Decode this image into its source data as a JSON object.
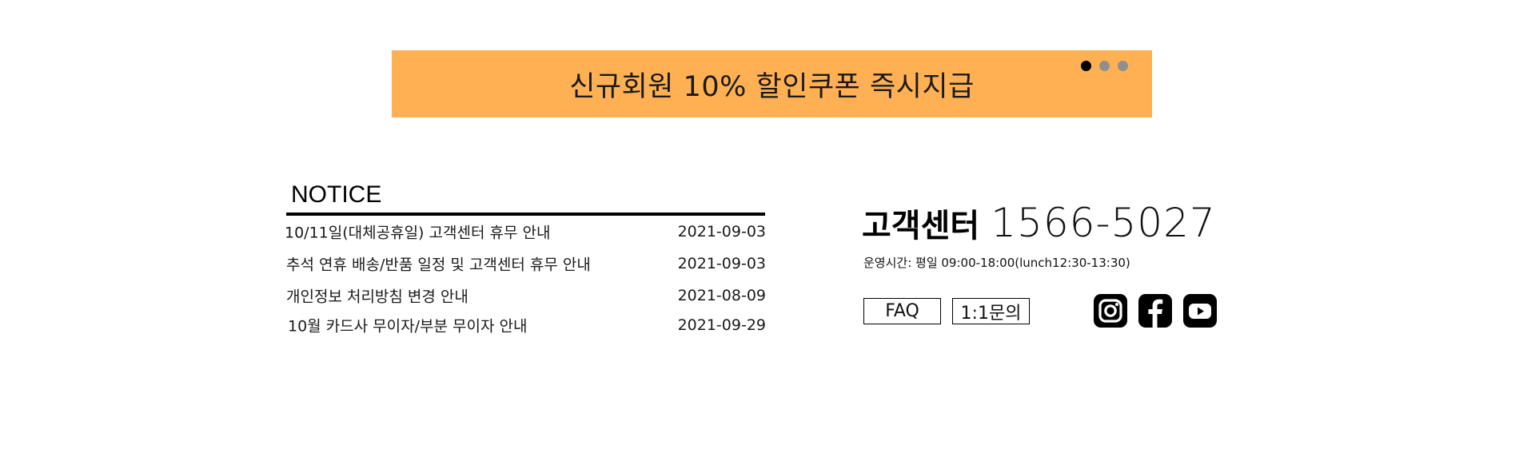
{
  "banner": {
    "text": "신규회원 10% 할인쿠폰 즉시지급",
    "bg_color": "#FFB052",
    "dots": 3,
    "active_dot": 0
  },
  "notice": {
    "title": "NOTICE",
    "items": [
      {
        "title": "10/11일(대체공휴일) 고객센터 휴무 안내",
        "date": "2021-09-03"
      },
      {
        "title": "추석 연휴 배송/반품 일정 및 고객센터 휴무 안내",
        "date": "2021-09-03"
      },
      {
        "title": "개인정보 처리방침 변경 안내",
        "date": "2021-08-09"
      },
      {
        "title": "10월 카드사 무이자/부분 무이자 안내",
        "date": "2021-09-29"
      }
    ]
  },
  "customer_center": {
    "label": "고객센터",
    "phone": "1566-5027",
    "hours": "운영시간: 평일 09:00-18:00(lunch12:30-13:30)",
    "faq_label": "FAQ",
    "inquiry_label": "1:1문의"
  },
  "social": [
    {
      "icon": "instagram-icon"
    },
    {
      "icon": "facebook-icon"
    },
    {
      "icon": "youtube-icon"
    }
  ]
}
